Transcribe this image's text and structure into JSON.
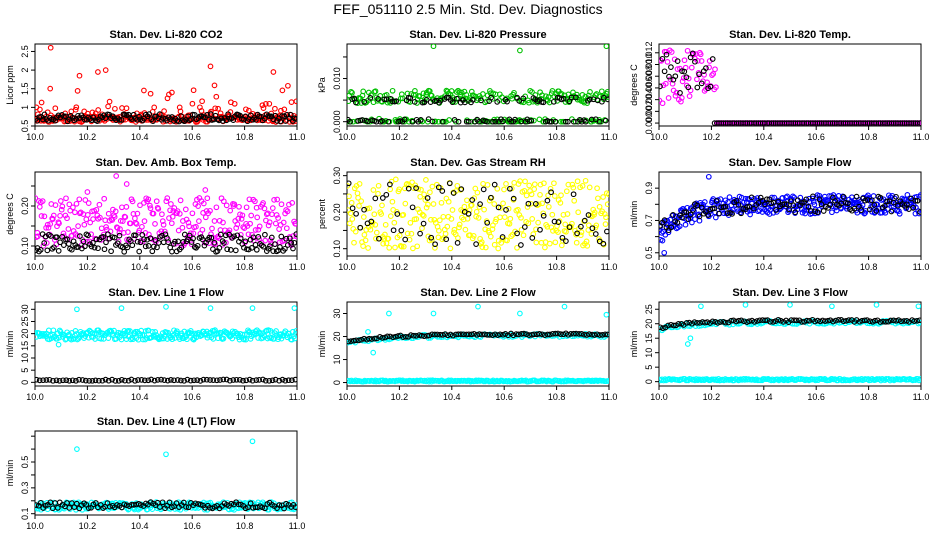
{
  "title": "FEF_051110  2.5 Min. Std. Dev. Diagnostics",
  "chart_data": [
    {
      "id": "p1",
      "type": "scatter",
      "title": "Stan. Dev. Li-820 CO2",
      "ylabel": "Licor ppm",
      "xlim": [
        10.0,
        11.0
      ],
      "ylim": [
        0.5,
        2.7
      ],
      "xticks": [
        10.0,
        10.2,
        10.4,
        10.6,
        10.8,
        11.0
      ],
      "yticks": [
        0.5,
        1.0,
        1.5,
        2.0,
        2.5
      ],
      "series": [
        {
          "color": "#ff0000",
          "n": 300,
          "seed": 11,
          "model": "noisy_exp",
          "base": 0.68,
          "scale": 0.22,
          "cap": 2.5,
          "extras": [
            [
              10.06,
              2.6
            ],
            [
              10.17,
              1.85
            ],
            [
              10.24,
              1.95
            ],
            [
              10.27,
              2.0
            ],
            [
              10.67,
              2.1
            ],
            [
              10.91,
              1.95
            ]
          ]
        },
        {
          "color": "#000000",
          "n": 150,
          "seed": 12,
          "model": "band",
          "lo": 0.62,
          "hi": 0.82
        }
      ]
    },
    {
      "id": "p2",
      "type": "scatter",
      "title": "Stan. Dev. Li-820 Pressure",
      "ylabel": "kPa",
      "xlim": [
        10.0,
        11.0
      ],
      "ylim": [
        -0.001,
        0.018
      ],
      "xticks": [
        10.0,
        10.2,
        10.4,
        10.6,
        10.8,
        11.0
      ],
      "yticks": [
        0.0,
        0.005,
        0.01,
        0.015
      ],
      "ytick_labels": [
        "0.000",
        "",
        "0.010",
        ""
      ],
      "series": [
        {
          "color": "#00c000",
          "n": 280,
          "seed": 21,
          "model": "levels",
          "levels": [
            0.0,
            0.005,
            0.0065
          ],
          "jitter": 0.0007,
          "extras": [
            [
              10.33,
              0.0175
            ],
            [
              10.66,
              0.0165
            ],
            [
              10.99,
              0.0175
            ]
          ]
        },
        {
          "color": "#000000",
          "n": 130,
          "seed": 22,
          "model": "levels",
          "levels": [
            0.0,
            0.005
          ],
          "jitter": 0.0006
        }
      ]
    },
    {
      "id": "p3",
      "type": "scatter",
      "title": "Stan. Dev. Li-820 Temp.",
      "ylabel": "degrees C",
      "xlim": [
        10.0,
        11.0
      ],
      "ylim": [
        -0.0005,
        0.0135
      ],
      "xticks": [
        10.0,
        10.2,
        10.4,
        10.6,
        10.8,
        11.0
      ],
      "yticks": [
        0.0,
        0.002,
        0.004,
        0.006,
        0.008,
        0.01,
        0.012
      ],
      "ytick_labels": [
        "0.000",
        "0.002",
        "0.004",
        "0.006",
        "0.008",
        "0.010",
        "0.012"
      ],
      "series": [
        {
          "color": "#ff00ff",
          "n": 260,
          "seed": 31,
          "model": "step_decay",
          "early": [
            0.003,
            0.0125
          ],
          "cut": 10.22,
          "late": 0.0
        },
        {
          "color": "#000000",
          "n": 120,
          "seed": 32,
          "model": "step_decay",
          "early": [
            0.005,
            0.012
          ],
          "cut": 10.21,
          "late": 0.0
        }
      ]
    },
    {
      "id": "p4",
      "type": "scatter",
      "title": "Stan. Dev. Amb. Box Temp.",
      "ylabel": "degrees C",
      "xlim": [
        10.0,
        11.0
      ],
      "ylim": [
        0.075,
        0.285
      ],
      "xticks": [
        10.0,
        10.2,
        10.4,
        10.6,
        10.8,
        11.0
      ],
      "yticks": [
        0.1,
        0.15,
        0.2,
        0.25
      ],
      "ytick_labels": [
        "0.10",
        "",
        "0.20",
        ""
      ],
      "series": [
        {
          "color": "#ff00ff",
          "n": 300,
          "seed": 41,
          "model": "band",
          "lo": 0.1,
          "hi": 0.22,
          "extras": [
            [
              10.31,
              0.275
            ],
            [
              10.35,
              0.255
            ],
            [
              10.65,
              0.24
            ],
            [
              10.2,
              0.235
            ]
          ]
        },
        {
          "color": "#000000",
          "n": 160,
          "seed": 42,
          "model": "band",
          "lo": 0.085,
          "hi": 0.13
        }
      ]
    },
    {
      "id": "p5",
      "type": "scatter",
      "title": "Stan. Dev. Gas Stream RH",
      "ylabel": "percent",
      "xlim": [
        10.0,
        11.0
      ],
      "ylim": [
        0.08,
        0.31
      ],
      "xticks": [
        10.0,
        10.2,
        10.4,
        10.6,
        10.8,
        11.0
      ],
      "yticks": [
        0.1,
        0.15,
        0.2,
        0.25,
        0.3
      ],
      "ytick_labels": [
        "0.10",
        "",
        "0.20",
        "",
        "0.30"
      ],
      "series": [
        {
          "color": "#ffff00",
          "n": 320,
          "seed": 51,
          "model": "band",
          "lo": 0.1,
          "hi": 0.29
        },
        {
          "color": "#000000",
          "n": 70,
          "seed": 52,
          "model": "band",
          "lo": 0.11,
          "hi": 0.28
        }
      ]
    },
    {
      "id": "p6",
      "type": "scatter",
      "title": "Stan. Dev. Sample Flow",
      "ylabel": "ml/min",
      "xlim": [
        10.0,
        11.0
      ],
      "ylim": [
        0.48,
        1.0
      ],
      "xticks": [
        10.0,
        10.2,
        10.4,
        10.6,
        10.8,
        11.0
      ],
      "yticks": [
        0.5,
        0.6,
        0.7,
        0.8,
        0.9
      ],
      "ytick_labels": [
        "0.5",
        "",
        "0.7",
        "",
        "0.9"
      ],
      "series": [
        {
          "color": "#0000ff",
          "n": 340,
          "seed": 61,
          "model": "rise",
          "start": 0.6,
          "end": 0.8,
          "tau": 0.1,
          "jitter": 0.06,
          "extras": [
            [
              10.19,
              0.97
            ],
            [
              10.02,
              0.5
            ]
          ]
        },
        {
          "color": "#000000",
          "n": 120,
          "seed": 62,
          "model": "rise",
          "start": 0.62,
          "end": 0.8,
          "tau": 0.1,
          "jitter": 0.05
        }
      ]
    },
    {
      "id": "p7",
      "type": "scatter",
      "title": "Stan. Dev. Line 1 Flow",
      "ylabel": "ml/min",
      "xlim": [
        10.0,
        11.0
      ],
      "ylim": [
        -1.5,
        33
      ],
      "xticks": [
        10.0,
        10.2,
        10.4,
        10.6,
        10.8,
        11.0
      ],
      "yticks": [
        0,
        5,
        10,
        15,
        20,
        25,
        30
      ],
      "series": [
        {
          "color": "#00ffff",
          "n": 280,
          "seed": 71,
          "model": "band",
          "lo": 17.5,
          "hi": 21.5,
          "extras": [
            [
              10.16,
              30
            ],
            [
              10.33,
              30.5
            ],
            [
              10.5,
              31
            ],
            [
              10.67,
              30.5
            ],
            [
              10.83,
              30.5
            ],
            [
              10.99,
              30.5
            ],
            [
              10.09,
              15.5
            ]
          ]
        },
        {
          "color": "#000000",
          "n": 80,
          "seed": 72,
          "model": "band",
          "lo": 0.6,
          "hi": 1.2
        }
      ]
    },
    {
      "id": "p8",
      "type": "scatter",
      "title": "Stan. Dev. Line 2 Flow",
      "ylabel": "ml/min",
      "xlim": [
        10.0,
        11.0
      ],
      "ylim": [
        -1.5,
        35
      ],
      "xticks": [
        10.0,
        10.2,
        10.4,
        10.6,
        10.8,
        11.0
      ],
      "yticks": [
        0,
        10,
        20,
        30
      ],
      "series": [
        {
          "color": "#00ffff",
          "n": 200,
          "seed": 81,
          "model": "band",
          "lo": 0.4,
          "hi": 1.0
        },
        {
          "color": "#00ffff",
          "n": 140,
          "seed": 82,
          "model": "rise",
          "start": 17,
          "end": 20.5,
          "tau": 0.15,
          "jitter": 0.7,
          "extras": [
            [
              10.16,
              30
            ],
            [
              10.33,
              30
            ],
            [
              10.5,
              33
            ],
            [
              10.66,
              30
            ],
            [
              10.83,
              33
            ],
            [
              10.99,
              29.5
            ],
            [
              10.08,
              22
            ],
            [
              10.1,
              13
            ]
          ]
        },
        {
          "color": "#000000",
          "n": 100,
          "seed": 83,
          "model": "rise",
          "start": 17.5,
          "end": 21,
          "tau": 0.15,
          "jitter": 0.4
        }
      ]
    },
    {
      "id": "p9",
      "type": "scatter",
      "title": "Stan. Dev. Line 3 Flow",
      "ylabel": "ml/min",
      "xlim": [
        10.0,
        11.0
      ],
      "ylim": [
        -1.5,
        27.5
      ],
      "xticks": [
        10.0,
        10.2,
        10.4,
        10.6,
        10.8,
        11.0
      ],
      "yticks": [
        0,
        5,
        10,
        15,
        20,
        25
      ],
      "series": [
        {
          "color": "#00ffff",
          "n": 200,
          "seed": 91,
          "model": "band",
          "lo": 0.4,
          "hi": 1.0
        },
        {
          "color": "#00ffff",
          "n": 140,
          "seed": 92,
          "model": "rise",
          "start": 18,
          "end": 20.5,
          "tau": 0.12,
          "jitter": 0.6,
          "extras": [
            [
              10.16,
              26
            ],
            [
              10.33,
              26.5
            ],
            [
              10.5,
              26.5
            ],
            [
              10.66,
              26
            ],
            [
              10.83,
              26.5
            ],
            [
              10.99,
              26
            ],
            [
              10.11,
              13
            ],
            [
              10.12,
              15
            ]
          ]
        },
        {
          "color": "#000000",
          "n": 100,
          "seed": 93,
          "model": "rise",
          "start": 18.5,
          "end": 21,
          "tau": 0.12,
          "jitter": 0.4
        }
      ]
    },
    {
      "id": "p10",
      "type": "scatter",
      "title": "Stan. Dev. Line 4 (LT) Flow",
      "ylabel": "ml/min",
      "xlim": [
        10.0,
        11.0
      ],
      "ylim": [
        0.09,
        0.74
      ],
      "xticks": [
        10.0,
        10.2,
        10.4,
        10.6,
        10.8,
        11.0
      ],
      "yticks": [
        0.1,
        0.2,
        0.3,
        0.4,
        0.5,
        0.6,
        0.7
      ],
      "ytick_labels": [
        "0.1",
        "",
        "0.3",
        "",
        "0.5",
        "",
        ""
      ],
      "series": [
        {
          "color": "#00ffff",
          "n": 280,
          "seed": 101,
          "model": "band",
          "lo": 0.13,
          "hi": 0.19,
          "extras": [
            [
              10.16,
              0.6
            ],
            [
              10.5,
              0.56
            ],
            [
              10.83,
              0.66
            ]
          ]
        },
        {
          "color": "#000000",
          "n": 110,
          "seed": 102,
          "model": "band",
          "lo": 0.14,
          "hi": 0.19
        }
      ]
    }
  ]
}
